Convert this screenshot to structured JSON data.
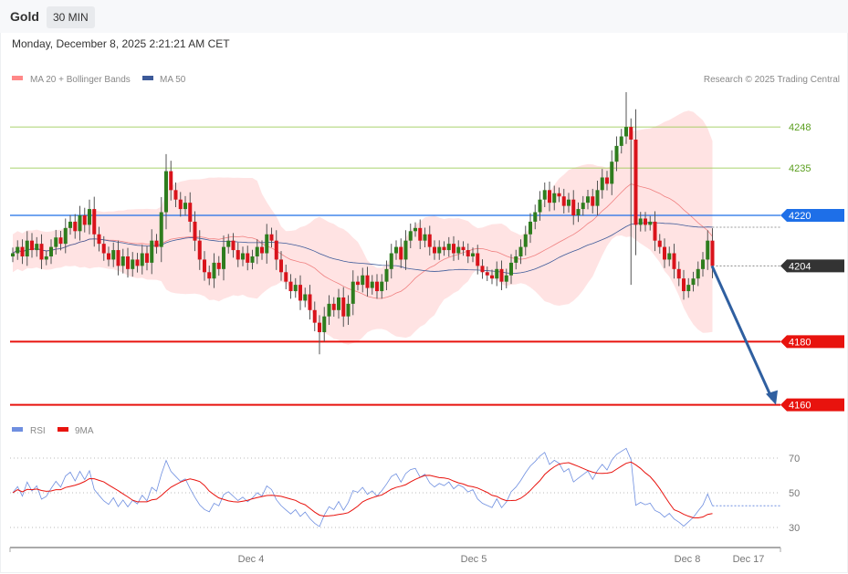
{
  "header": {
    "instrument": "Gold",
    "timeframe": "30 MIN",
    "datetime": "Monday, December 8, 2025 2:21:21 AM CET"
  },
  "legend": {
    "ma20_bb": "MA 20 + Bollinger Bands",
    "ma50": "MA 50",
    "copyright": "Research © 2025 Trading Central"
  },
  "rsi_legend": {
    "rsi": "RSI",
    "ma9": "9MA"
  },
  "colors": {
    "up": "#2e7d1e",
    "down": "#d9131b",
    "band": "#ffdede",
    "ma20": "#f08080",
    "ma50": "#3d5a99",
    "resistance": "#8cc63f",
    "pivot": "#1e6fe8",
    "support": "#e8130e",
    "last": "#333333",
    "rsi": "#6f8fe0",
    "rsi_ma": "#e8130e",
    "arrow": "#2f5fa0"
  },
  "chart_data": [
    {
      "type": "candlestick",
      "series": [
        {
          "name": "Gold",
          "close": [
            4208,
            4210,
            4207,
            4212,
            4209,
            4211,
            4206,
            4207,
            4210,
            4213,
            4211,
            4216,
            4218,
            4215,
            4220,
            4217,
            4222,
            4214,
            4211,
            4208,
            4206,
            4209,
            4204,
            4207,
            4203,
            4206,
            4204,
            4208,
            4205,
            4212,
            4210,
            4221,
            4234,
            4228,
            4225,
            4222,
            4224,
            4218,
            4212,
            4206,
            4202,
            4200,
            4205,
            4203,
            4210,
            4212,
            4209,
            4206,
            4208,
            4205,
            4207,
            4210,
            4208,
            4214,
            4212,
            4206,
            4202,
            4199,
            4196,
            4198,
            4193,
            4195,
            4190,
            4186,
            4183,
            4188,
            4192,
            4190,
            4194,
            4188,
            4192,
            4199,
            4198,
            4201,
            4197,
            4199,
            4196,
            4199,
            4203,
            4208,
            4210,
            4206,
            4212,
            4215,
            4216,
            4212,
            4214,
            4210,
            4208,
            4210,
            4209,
            4211,
            4208,
            4210,
            4209,
            4207,
            4208,
            4204,
            4202,
            4201,
            4200,
            4203,
            4199,
            4201,
            4205,
            4207,
            4210,
            4214,
            4218,
            4221,
            4225,
            4228,
            4224,
            4227,
            4226,
            4223,
            4225,
            4220,
            4222,
            4224,
            4226,
            4223,
            4228,
            4232,
            4230,
            4237,
            4242,
            4245,
            4248,
            4244,
            4217,
            4219,
            4217,
            4218,
            4212,
            4210,
            4206,
            4208,
            4203,
            4200,
            4196,
            4198,
            4200,
            4203,
            4206,
            4212,
            4204
          ],
          "extremes": {
            "128": {
              "high": 4259
            },
            "129": {
              "low": 4198
            },
            "64": {
              "low": 4176
            }
          }
        }
      ],
      "indicators": [
        "MA 20 + Bollinger Bands",
        "MA 50"
      ],
      "levels": [
        {
          "value": 4248,
          "label": "4248",
          "kind": "resistance"
        },
        {
          "value": 4235,
          "label": "4235",
          "kind": "resistance"
        },
        {
          "value": 4220,
          "label": "4220",
          "kind": "pivot"
        },
        {
          "value": 4204,
          "label": "4204",
          "kind": "last"
        },
        {
          "value": 4180,
          "label": "4180",
          "kind": "support"
        },
        {
          "value": 4160,
          "label": "4160",
          "kind": "support"
        }
      ],
      "forecast_arrow": {
        "from": 4204,
        "to": 4160,
        "direction": "down"
      },
      "x_ticks": [
        "Dec 4",
        "Dec 5",
        "Dec 8",
        "Dec 17"
      ]
    },
    {
      "type": "line",
      "series": [
        {
          "name": "RSI"
        },
        {
          "name": "9MA"
        }
      ],
      "y_ticks": [
        "70",
        "50",
        "30"
      ],
      "ylim": [
        20,
        80
      ]
    }
  ]
}
